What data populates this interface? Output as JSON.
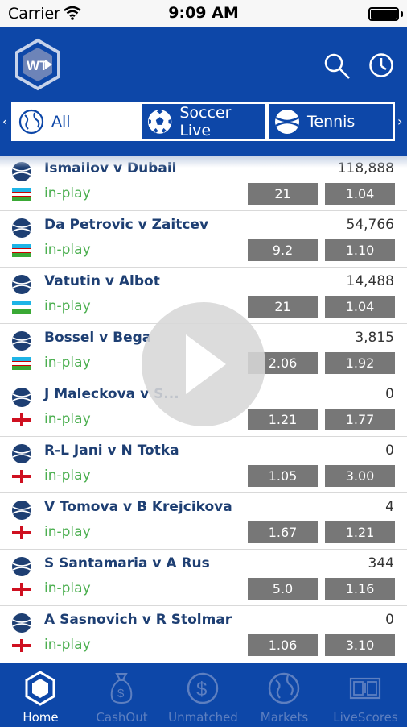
{
  "status_bar": {
    "carrier": "Carrier",
    "time": "9:09 AM"
  },
  "header": {
    "logo_text": "WT"
  },
  "tabs": [
    {
      "label": "All",
      "icon": "globe-icon",
      "active": true
    },
    {
      "label": "Soccer Live",
      "icon": "soccer-ball-icon",
      "active": false
    },
    {
      "label": "Tennis",
      "icon": "tennis-ball-icon",
      "active": false
    }
  ],
  "matches": [
    {
      "name": "Ismailov v Dubail",
      "volume": "118,888",
      "status": "in-play",
      "odds": [
        "21",
        "1.04"
      ],
      "flag": "uzbekistan"
    },
    {
      "name": "Da Petrovic v Zaitcev",
      "volume": "54,766",
      "status": "in-play",
      "odds": [
        "9.2",
        "1.10"
      ],
      "flag": "uzbekistan"
    },
    {
      "name": "Vatutin v Albot",
      "volume": "14,488",
      "status": "in-play",
      "odds": [
        "21",
        "1.04"
      ],
      "flag": "uzbekistan"
    },
    {
      "name": "Bossel v Bega",
      "volume": "3,815",
      "status": "in-play",
      "odds": [
        "2.06",
        "1.92"
      ],
      "flag": "uzbekistan"
    },
    {
      "name": "J Maleckova v S...",
      "volume": "0",
      "status": "in-play",
      "odds": [
        "1.21",
        "1.77"
      ],
      "flag": "england"
    },
    {
      "name": "R-L Jani v N Totka",
      "volume": "0",
      "status": "in-play",
      "odds": [
        "1.05",
        "3.00"
      ],
      "flag": "england"
    },
    {
      "name": "V Tomova v B Krejcikova",
      "volume": "4",
      "status": "in-play",
      "odds": [
        "1.67",
        "1.21"
      ],
      "flag": "england"
    },
    {
      "name": "S Santamaria v A Rus",
      "volume": "344",
      "status": "in-play",
      "odds": [
        "5.0",
        "1.16"
      ],
      "flag": "england"
    },
    {
      "name": "A Sasnovich v R Stolmar",
      "volume": "0",
      "status": "in-play",
      "odds": [
        "1.06",
        "3.10"
      ],
      "flag": "england"
    }
  ],
  "bottom_nav": [
    {
      "label": "Home",
      "icon": "home-hexagon-icon",
      "active": true
    },
    {
      "label": "CashOut",
      "icon": "money-bag-icon",
      "active": false
    },
    {
      "label": "Unmatched",
      "icon": "dollar-circle-icon",
      "active": false
    },
    {
      "label": "Markets",
      "icon": "globe-icon",
      "active": false
    },
    {
      "label": "LiveScores",
      "icon": "scoreboard-icon",
      "active": false
    }
  ],
  "colors": {
    "brand_blue": "#0d47a8",
    "in_play_green": "#4caf50",
    "odds_grey": "#777777"
  }
}
